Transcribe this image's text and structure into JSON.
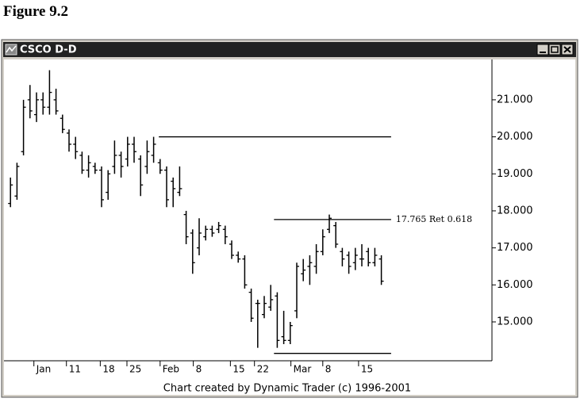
{
  "figure_label": "Figure 9.2",
  "window_title": "CSCO D-D",
  "footer": "Chart created by Dynamic Trader (c) 1996-2001",
  "chart_data": {
    "type": "ohlc",
    "color": "#000000",
    "x": [
      0,
      1,
      2,
      3,
      4,
      5,
      6,
      7,
      8,
      9,
      10,
      11,
      12,
      13,
      14,
      15,
      16,
      17,
      18,
      19,
      20,
      21,
      22,
      23,
      24,
      25,
      26,
      27,
      28,
      29,
      30,
      31,
      32,
      33,
      34,
      35,
      36,
      37,
      38,
      39,
      40,
      41,
      42,
      43,
      44,
      45,
      46,
      47,
      48,
      49,
      50,
      51,
      52,
      53,
      54,
      55,
      56,
      57
    ],
    "open": [
      18.2,
      18.4,
      19.6,
      21.0,
      20.6,
      21.0,
      20.8,
      21.0,
      20.5,
      20.1,
      19.8,
      19.5,
      19.1,
      19.2,
      19.1,
      18.5,
      19.2,
      19.5,
      19.4,
      19.8,
      19.4,
      19.2,
      19.5,
      19.3,
      19.1,
      18.8,
      18.5,
      17.9,
      17.4,
      17.0,
      17.3,
      17.5,
      17.5,
      17.5,
      17.1,
      16.8,
      16.7,
      15.8,
      15.5,
      15.2,
      15.4,
      15.7,
      14.6,
      14.5,
      15.3,
      16.3,
      16.5,
      16.5,
      16.9,
      17.5,
      17.6,
      16.9,
      16.8,
      16.6,
      16.7,
      16.9,
      16.6,
      16.7
    ],
    "high": [
      18.9,
      19.3,
      21.0,
      21.4,
      21.2,
      21.2,
      21.8,
      21.3,
      20.6,
      20.2,
      20.0,
      19.6,
      19.5,
      19.3,
      19.2,
      19.1,
      19.9,
      19.6,
      20.0,
      20.0,
      19.5,
      19.9,
      20.0,
      19.4,
      19.2,
      18.9,
      19.2,
      18.0,
      17.5,
      17.8,
      17.6,
      17.6,
      17.7,
      17.6,
      17.2,
      16.9,
      16.8,
      15.9,
      15.6,
      15.7,
      16.0,
      15.8,
      15.3,
      15.0,
      16.6,
      16.7,
      16.8,
      17.1,
      17.5,
      17.9,
      17.7,
      17.0,
      16.9,
      17.0,
      17.1,
      17.0,
      17.0,
      16.8
    ],
    "low": [
      18.1,
      18.3,
      19.5,
      20.5,
      20.4,
      20.6,
      20.6,
      20.6,
      20.1,
      19.6,
      19.4,
      19.0,
      18.9,
      19.0,
      18.1,
      18.3,
      19.0,
      18.9,
      19.2,
      19.3,
      18.4,
      19.0,
      19.3,
      19.0,
      18.1,
      18.1,
      18.4,
      17.1,
      16.3,
      16.8,
      17.2,
      17.3,
      17.4,
      17.1,
      16.7,
      16.6,
      15.9,
      15.0,
      14.3,
      15.1,
      15.3,
      14.3,
      14.4,
      14.4,
      15.1,
      16.1,
      16.0,
      16.3,
      16.8,
      17.4,
      17.0,
      16.5,
      16.3,
      16.4,
      16.5,
      16.5,
      16.5,
      16.0
    ],
    "close": [
      18.7,
      19.2,
      20.8,
      20.7,
      21.0,
      20.8,
      21.2,
      20.7,
      20.2,
      19.8,
      19.6,
      19.1,
      19.3,
      19.1,
      18.3,
      19.0,
      19.5,
      19.2,
      19.8,
      19.6,
      18.7,
      19.6,
      19.8,
      19.1,
      18.3,
      18.6,
      18.6,
      17.3,
      16.6,
      17.4,
      17.5,
      17.4,
      17.6,
      17.3,
      16.8,
      16.7,
      16.0,
      15.1,
      15.5,
      15.5,
      15.6,
      14.5,
      14.5,
      14.9,
      16.5,
      16.4,
      16.6,
      16.9,
      17.3,
      17.8,
      17.1,
      16.7,
      16.5,
      16.8,
      16.7,
      16.6,
      16.8,
      16.1
    ],
    "xlim": [
      -1,
      74
    ],
    "xticks": [
      {
        "value": 3.6,
        "label": "Jan"
      },
      {
        "value": 8.6,
        "label": "11"
      },
      {
        "value": 13.8,
        "label": "18"
      },
      {
        "value": 17.9,
        "label": "25"
      },
      {
        "value": 23,
        "label": "Feb"
      },
      {
        "value": 28.1,
        "label": "8"
      },
      {
        "value": 33.8,
        "label": "15"
      },
      {
        "value": 37.5,
        "label": "22"
      },
      {
        "value": 43.1,
        "label": "Mar"
      },
      {
        "value": 48,
        "label": "8"
      },
      {
        "value": 53.5,
        "label": "15"
      }
    ],
    "ylim": [
      13.95,
      22.09
    ],
    "yticks": [
      {
        "value": 15,
        "label": "15.000"
      },
      {
        "value": 16,
        "label": "16.000"
      },
      {
        "value": 17,
        "label": "17.000"
      },
      {
        "value": 18,
        "label": "18.000"
      },
      {
        "value": 19,
        "label": "19.000"
      },
      {
        "value": 20,
        "label": "20.000"
      },
      {
        "value": 21,
        "label": "21.000"
      }
    ],
    "lines": [
      {
        "value": 20.0,
        "x": [
          22.8,
          58.5
        ]
      },
      {
        "value": 17.765,
        "label": "17.765 Ret 0.618",
        "x": [
          40.5,
          58.5
        ]
      },
      {
        "value": 14.15,
        "x": [
          40.5,
          58.5
        ]
      }
    ]
  }
}
